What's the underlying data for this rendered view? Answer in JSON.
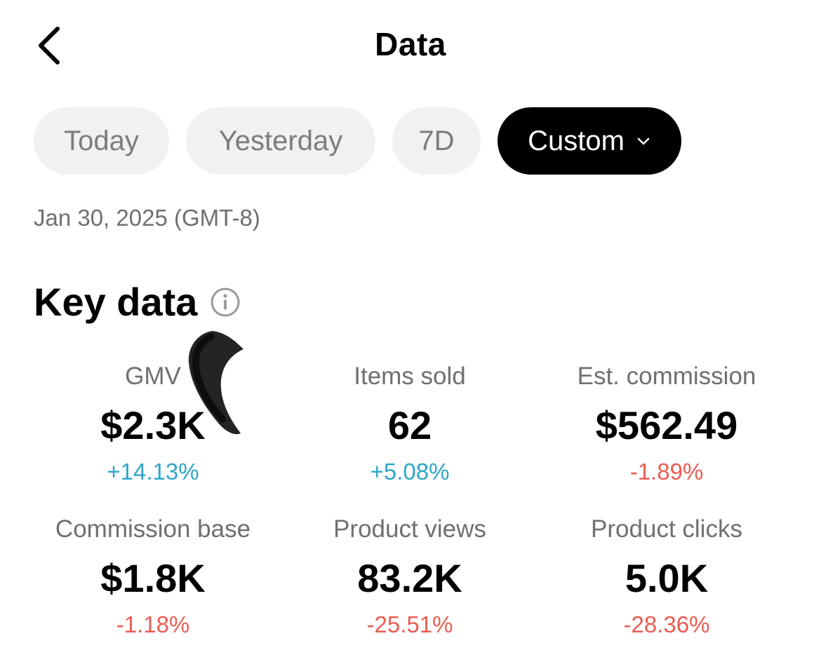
{
  "header": {
    "title": "Data",
    "back_icon": "chevron-left-icon"
  },
  "filters": {
    "chips": [
      {
        "label": "Today",
        "selected": false
      },
      {
        "label": "Yesterday",
        "selected": false
      },
      {
        "label": "7D",
        "selected": false
      },
      {
        "label": "Custom",
        "selected": true,
        "icon": "chevron-down-icon"
      }
    ],
    "date_range": "Jan 30, 2025 (GMT-8)"
  },
  "key_data": {
    "title": "Key data",
    "info_icon": "info-icon",
    "metrics": [
      {
        "label": "GMV",
        "value": "$2.3K",
        "change": "+14.13%",
        "trend": "up"
      },
      {
        "label": "Items sold",
        "value": "62",
        "change": "+5.08%",
        "trend": "up"
      },
      {
        "label": "Est. commission",
        "value": "$562.49",
        "change": "-1.89%",
        "trend": "down"
      },
      {
        "label": "Commission base",
        "value": "$1.8K",
        "change": "-1.18%",
        "trend": "down"
      },
      {
        "label": "Product views",
        "value": "83.2K",
        "change": "-25.51%",
        "trend": "down"
      },
      {
        "label": "Product clicks",
        "value": "5.0K",
        "change": "-28.36%",
        "trend": "down"
      }
    ]
  },
  "colors": {
    "positive": "#2ea6c8",
    "negative": "#ea5d52",
    "chip_bg": "#f1f1f2",
    "chip_selected_bg": "#000000"
  }
}
